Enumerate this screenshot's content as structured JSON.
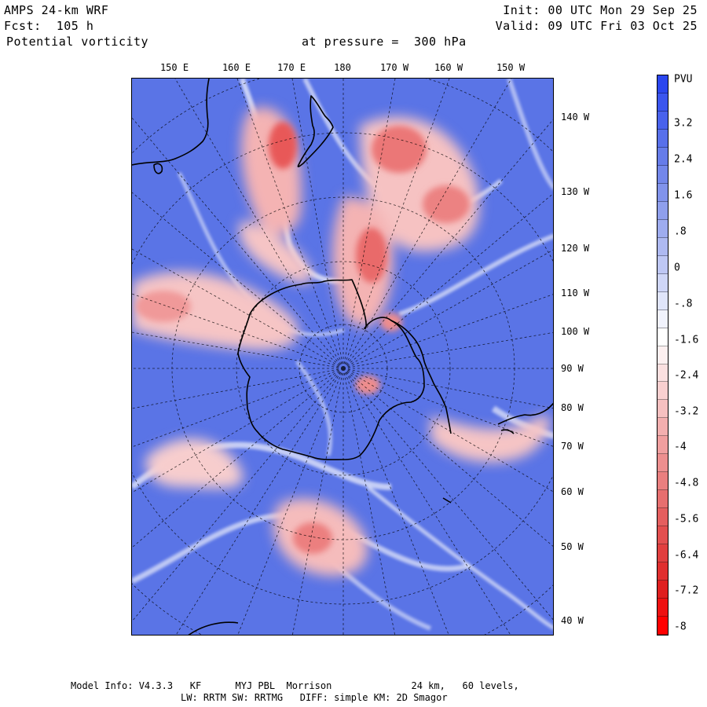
{
  "header": {
    "model": "AMPS 24-km WRF",
    "forecast": "Fcst:  105 h",
    "field": "Potential vorticity",
    "pressure": "at pressure =  300 hPa",
    "init": "Init: 00 UTC Mon 29 Sep 25",
    "valid": "Valid: 09 UTC Fri 03 Oct 25"
  },
  "map": {
    "top_longitudes": [
      "150 E",
      "160 E",
      "170 E",
      "180",
      "170 W",
      "160 W",
      "150 W"
    ],
    "right_longitudes": [
      "140 W",
      "130 W",
      "120 W",
      "110 W",
      "100 W",
      "90 W",
      "80 W",
      "70 W",
      "60 W",
      "50 W",
      "40 W"
    ]
  },
  "colorbar": {
    "unit": "PVU",
    "labels": [
      "3.2",
      "2.4",
      "1.6",
      ".8",
      "0",
      "-.8",
      "-1.6",
      "-2.4",
      "-3.2",
      "-4",
      "-4.8",
      "-5.6",
      "-6.4",
      "-7.2",
      "-8"
    ],
    "colors": [
      "#2b46ee",
      "#3b55ee",
      "#4962ec",
      "#5870ea",
      "#667ce9",
      "#7387ea",
      "#8193eb",
      "#8f9fec",
      "#9eacef",
      "#aeb9f1",
      "#bec7f4",
      "#cfd6f7",
      "#e0e5fa",
      "#f1f3fd",
      "#ffffff",
      "#fdf0f0",
      "#fbe0e0",
      "#f9d0d0",
      "#f6c0c0",
      "#f3afaf",
      "#f09f9f",
      "#ed8f8f",
      "#ea7f7f",
      "#e76f6f",
      "#e55f5f",
      "#e34f4f",
      "#e13f3f",
      "#e02f2f",
      "#df1f1f",
      "#ee1111",
      "#ff0000"
    ]
  },
  "footer": {
    "line1": "Model Info: V4.3.3   KF      MYJ PBL  Morrison              24 km,   60 levels,",
    "line2": "LW: RRTM SW: RRTMG   DIFF: simple KM: 2D Smagor"
  }
}
